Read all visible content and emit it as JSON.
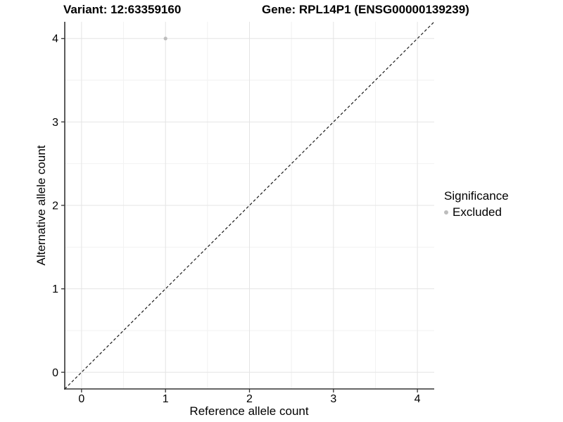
{
  "titles": {
    "variant": "Variant: 12:63359160",
    "gene": "Gene: RPL14P1 (ENSG00000139239)"
  },
  "chart_data": {
    "type": "scatter",
    "xlabel": "Reference allele count",
    "ylabel": "Alternative allele count",
    "xlim": [
      -0.2,
      4.2
    ],
    "ylim": [
      -0.2,
      4.2
    ],
    "x_ticks": [
      0,
      1,
      2,
      3,
      4
    ],
    "y_ticks": [
      0,
      1,
      2,
      3,
      4
    ],
    "x_minor_ticks": [
      0.5,
      1.5,
      2.5,
      3.5
    ],
    "y_minor_ticks": [
      0.5,
      1.5,
      2.5,
      3.5
    ],
    "grid": "major+minor",
    "points": [
      {
        "x": 1,
        "y": 4,
        "series": "Excluded"
      }
    ],
    "reference_line": {
      "slope": 1,
      "intercept": 0,
      "style": "dashed"
    },
    "legend": {
      "position": "right",
      "title": "Significance",
      "items": [
        {
          "label": "Excluded",
          "color": "#bdbdbd"
        }
      ]
    },
    "colors": {
      "point": "#bdbdbd",
      "grid_major": "#e4e4e4",
      "grid_minor": "#f2f2f2",
      "axis": "#333333",
      "reference_line": "#1a1a1a",
      "tick": "#333333",
      "text": "#000000",
      "background": "#ffffff"
    }
  }
}
